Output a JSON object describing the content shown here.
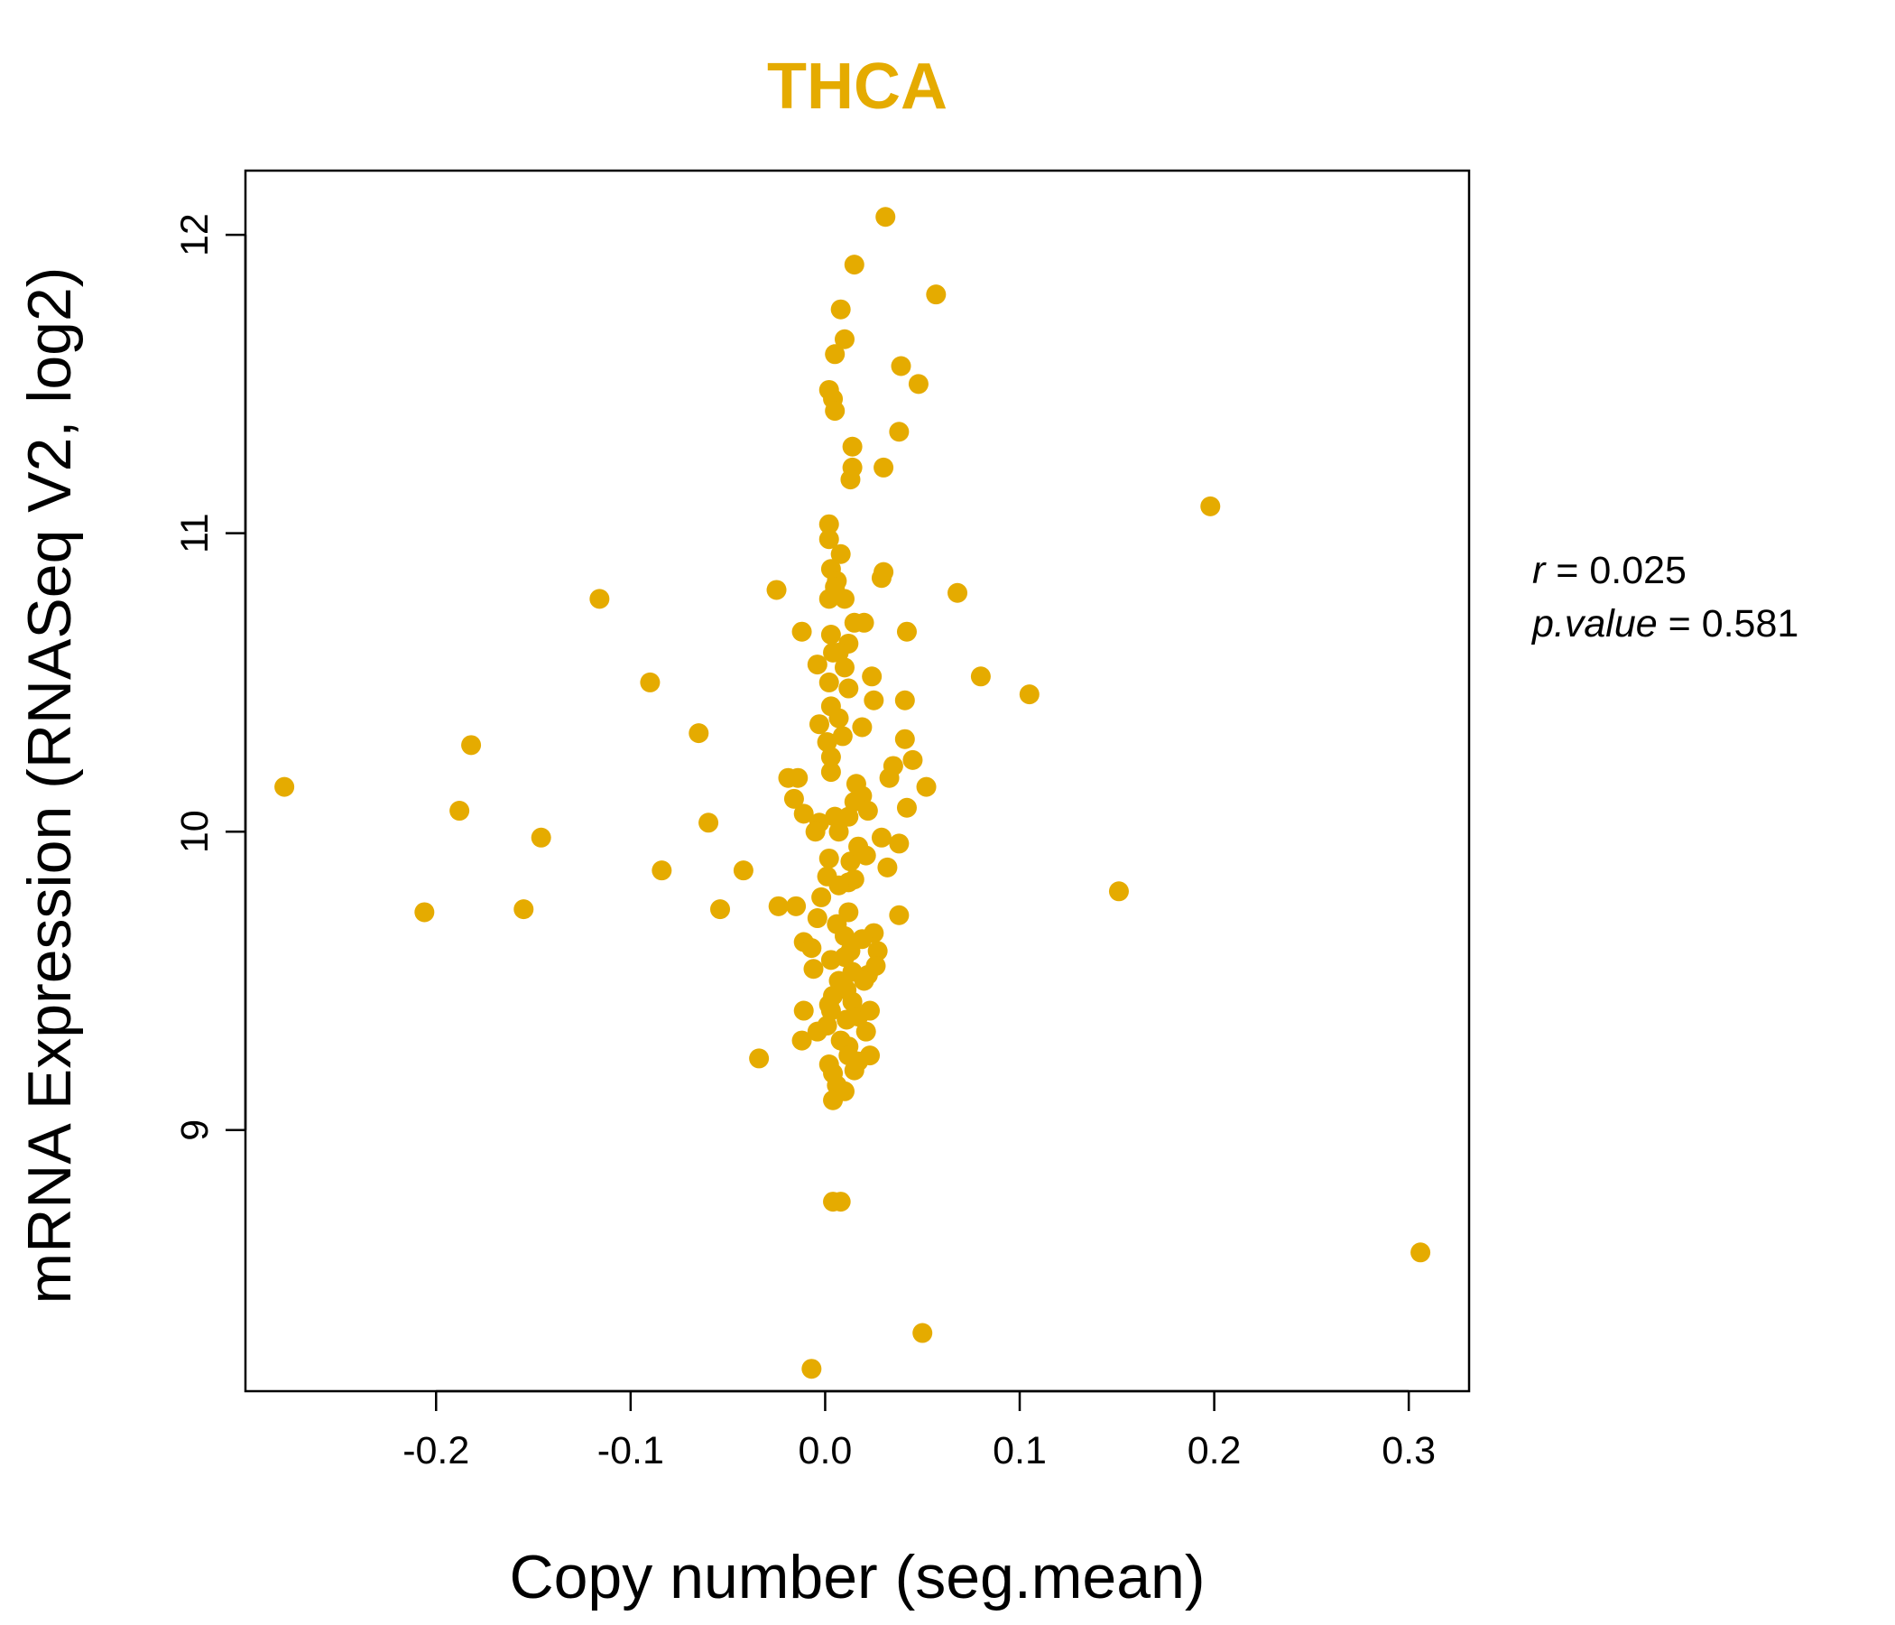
{
  "chart_data": {
    "type": "scatter",
    "title": "THCA",
    "xlabel": "Copy number (seg.mean)",
    "ylabel": "mRNA Expression (RNASeq V2, log2)",
    "xlim": [
      -0.298,
      0.331
    ],
    "ylim": [
      8.125,
      12.215
    ],
    "xticks": [
      -0.2,
      -0.1,
      0.0,
      0.1,
      0.2,
      0.3
    ],
    "xtick_labels": [
      "-0.2",
      "-0.1",
      "0.0",
      "0.1",
      "0.2",
      "0.3"
    ],
    "yticks": [
      9,
      10,
      11,
      12
    ],
    "ytick_labels": [
      "9",
      "10",
      "11",
      "12"
    ],
    "stats": {
      "r_label": "r",
      "r_value": "0.025",
      "p_label": "p.value",
      "p_value": "0.581"
    },
    "color": "#E5AB00",
    "series": [
      {
        "name": "samples",
        "x": [
          0.031,
          0.015,
          0.057,
          0.008,
          0.01,
          0.005,
          0.039,
          0.048,
          0.002,
          0.004,
          0.005,
          0.038,
          0.014,
          0.014,
          0.013,
          0.03,
          0.198,
          0.002,
          0.002,
          0.008,
          0.003,
          0.006,
          0.002,
          0.029,
          0.03,
          -0.025,
          0.068,
          -0.116,
          0.005,
          0.01,
          0.015,
          0.02,
          0.042,
          -0.012,
          0.003,
          0.012,
          0.004,
          0.007,
          -0.004,
          0.01,
          0.08,
          -0.09,
          0.024,
          0.002,
          0.012,
          0.105,
          0.003,
          0.007,
          0.025,
          0.041,
          -0.003,
          -0.065,
          0.001,
          0.009,
          0.019,
          0.041,
          -0.182,
          0.045,
          0.035,
          -0.019,
          -0.014,
          0.016,
          -0.278,
          0.052,
          0.033,
          -0.016,
          0.019,
          0.042,
          -0.011,
          -0.188,
          0.022,
          -0.003,
          -0.06,
          0.012,
          -0.005,
          0.029,
          0.038,
          -0.146,
          -0.084,
          0.032,
          -0.042,
          0.002,
          0.021,
          0.015,
          0.012,
          0.151,
          0.007,
          -0.015,
          -0.024,
          -0.155,
          -0.206,
          -0.054,
          0.038,
          -0.004,
          0.006,
          0.012,
          0.025,
          -0.011,
          0.019,
          -0.007,
          0.013,
          0.027,
          0.003,
          0.01,
          -0.006,
          0.022,
          0.014,
          0.007,
          0.02,
          0.008,
          0.011,
          0.004,
          0.002,
          0.014,
          0.003,
          -0.011,
          0.017,
          0.023,
          0.011,
          0.001,
          -0.004,
          0.021,
          0.008,
          0.012,
          -0.012,
          0.023,
          0.017,
          0.002,
          0.012,
          0.004,
          0.006,
          0.015,
          0.01,
          0.004,
          -0.034,
          0.026,
          0.01,
          -0.002,
          0.013,
          0.007,
          0.015,
          0.003,
          0.003,
          0.005,
          0.017,
          0.001,
          0.008,
          0.004,
          0.306,
          0.05,
          -0.007
        ],
        "y": [
          12.06,
          11.9,
          11.8,
          11.75,
          11.65,
          11.6,
          11.56,
          11.5,
          11.48,
          11.45,
          11.41,
          11.34,
          11.29,
          11.22,
          11.18,
          11.22,
          11.09,
          11.03,
          10.98,
          10.93,
          10.88,
          10.84,
          10.78,
          10.85,
          10.87,
          10.81,
          10.8,
          10.78,
          10.82,
          10.78,
          10.7,
          10.7,
          10.67,
          10.67,
          10.66,
          10.63,
          10.6,
          10.6,
          10.56,
          10.55,
          10.52,
          10.5,
          10.52,
          10.5,
          10.48,
          10.46,
          10.42,
          10.38,
          10.44,
          10.44,
          10.36,
          10.33,
          10.3,
          10.32,
          10.35,
          10.31,
          10.29,
          10.24,
          10.22,
          10.18,
          10.18,
          10.16,
          10.15,
          10.15,
          10.18,
          10.11,
          10.12,
          10.08,
          10.06,
          10.07,
          10.07,
          10.03,
          10.03,
          10.05,
          10.0,
          9.98,
          9.96,
          9.98,
          9.87,
          9.88,
          9.87,
          9.91,
          9.92,
          9.84,
          9.83,
          9.8,
          9.82,
          9.75,
          9.75,
          9.74,
          9.73,
          9.74,
          9.72,
          9.71,
          9.69,
          9.73,
          9.66,
          9.63,
          9.64,
          9.61,
          9.6,
          9.6,
          9.57,
          9.58,
          9.54,
          9.52,
          9.53,
          9.5,
          9.5,
          9.48,
          9.47,
          9.45,
          9.42,
          9.43,
          9.4,
          9.4,
          9.38,
          9.4,
          9.37,
          9.35,
          9.33,
          9.33,
          9.3,
          9.28,
          9.3,
          9.25,
          9.23,
          9.22,
          9.25,
          9.19,
          9.15,
          9.2,
          9.13,
          9.1,
          9.24,
          9.55,
          9.65,
          9.78,
          9.9,
          10.0,
          10.1,
          10.2,
          10.25,
          10.05,
          9.95,
          9.85,
          8.76,
          8.76,
          8.59,
          8.32,
          8.2
        ]
      }
    ]
  }
}
